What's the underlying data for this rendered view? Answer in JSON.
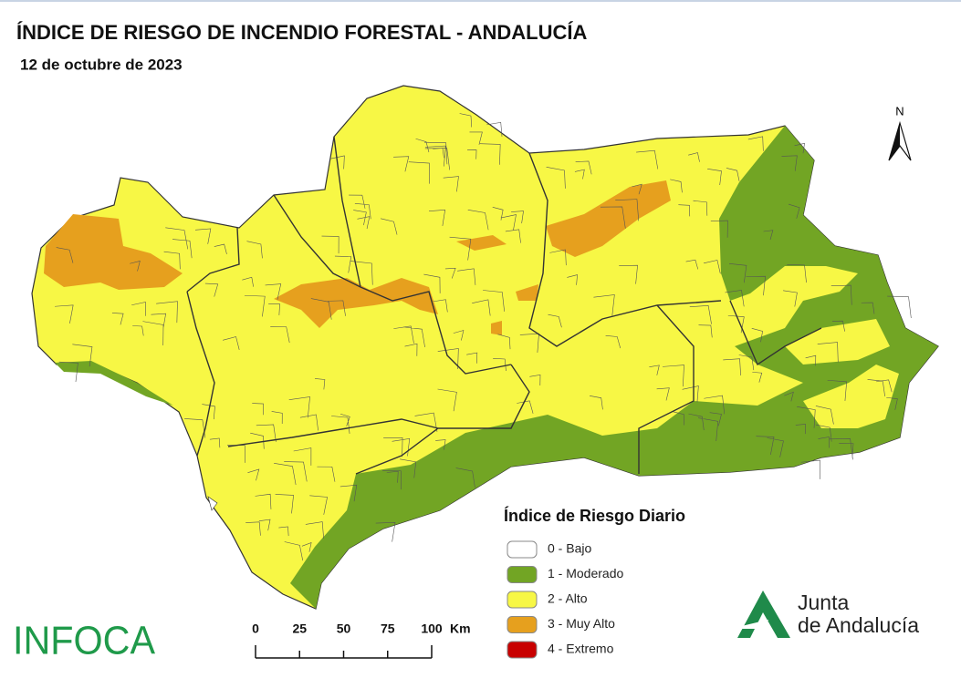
{
  "header": {
    "title": "ÍNDICE DE RIESGO DE INCENDIO FORESTAL - ANDALUCÍA",
    "date": "12 de octubre de 2023"
  },
  "north_arrow": {
    "label": "N"
  },
  "legend": {
    "title": "Índice de Riesgo Diario",
    "items": [
      {
        "label": "0 - Bajo",
        "color": "#ffffff"
      },
      {
        "label": "1 - Moderado",
        "color": "#72a524"
      },
      {
        "label": "2 - Alto",
        "color": "#f7f745"
      },
      {
        "label": "3 - Muy Alto",
        "color": "#e6a01e"
      },
      {
        "label": "4 - Extremo",
        "color": "#c80000"
      }
    ]
  },
  "scale_bar": {
    "ticks": [
      0,
      25,
      50,
      75,
      100
    ],
    "unit": "Km"
  },
  "logos": {
    "infoca": "INFOCA",
    "junta_line1": "Junta",
    "junta_line2": "de Andalucía"
  }
}
